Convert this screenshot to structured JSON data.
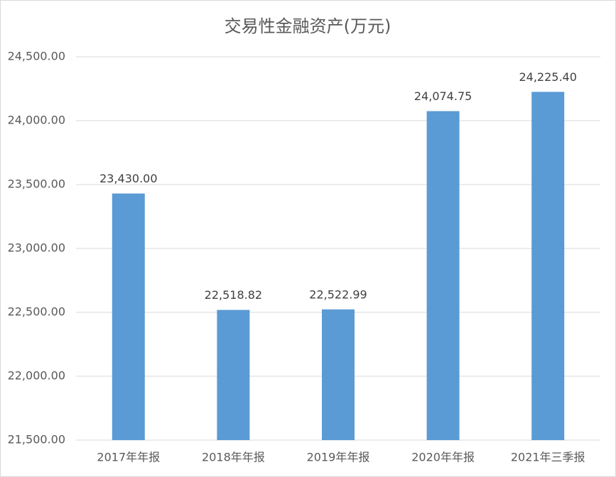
{
  "chart_data": {
    "type": "bar",
    "title": "交易性金融资产(万元)",
    "categories": [
      "2017年年报",
      "2018年年报",
      "2019年年报",
      "2020年年报",
      "2021年三季报"
    ],
    "values": [
      23430,
      22518.82,
      22522.99,
      24074.75,
      24225.4
    ],
    "value_labels": [
      "23,430.00",
      "22,518.82",
      "22,522.99",
      "24,074.75",
      "24,225.40"
    ],
    "color": "#5b9bd5",
    "ylim": [
      21500,
      24500
    ],
    "yticks": [
      {
        "value": 21500,
        "label": "21,500.00"
      },
      {
        "value": 22000,
        "label": "22,000.00"
      },
      {
        "value": 22500,
        "label": "22,500.00"
      },
      {
        "value": 23000,
        "label": "23,000.00"
      },
      {
        "value": 23500,
        "label": "23,500.00"
      },
      {
        "value": 24000,
        "label": "24,000.00"
      },
      {
        "value": 24500,
        "label": "24,500.00"
      }
    ],
    "grid": true
  }
}
